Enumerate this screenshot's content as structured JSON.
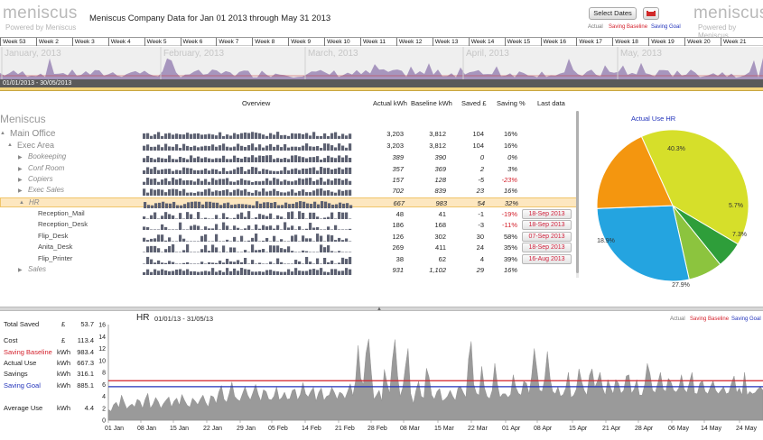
{
  "header": {
    "logo_left": "meniscus",
    "powered_left": "Powered by Meniscus",
    "title": "Meniscus Company Data for Jan 01 2013 through May 31 2013",
    "select_dates": "Select Dates",
    "logo_right": "meniscus",
    "powered_right": "Powered by Meniscus",
    "legend": {
      "actual": "Actual",
      "baseline": "Saving Baseline",
      "goal": "Saving Goal"
    }
  },
  "timeline": {
    "weeks": [
      "Week 53",
      "Week 2",
      "Week 3",
      "Week 4",
      "Week 5",
      "Week 6",
      "Week 7",
      "Week 8",
      "Week 9",
      "Week 10",
      "Week 11",
      "Week 12",
      "Week 13",
      "Week 14",
      "Week 15",
      "Week 16",
      "Week 17",
      "Week 18",
      "Week 19",
      "Week 20",
      "Week 21"
    ],
    "months": [
      "January, 2013",
      "February, 2013",
      "March, 2013",
      "April, 2013",
      "May, 2013"
    ],
    "range": "01/01/2013 - 30/05/2013"
  },
  "table": {
    "headers": {
      "overview": "Overview",
      "actual": "Actual kWh",
      "baseline": "Baseline kWh",
      "saved": "Saved £",
      "saving": "Saving %",
      "last": "Last data"
    },
    "rows": [
      {
        "name": "Meniscus",
        "actual": "",
        "baseline": "",
        "saved": "",
        "saving": "",
        "last": ""
      },
      {
        "name": "Main Office",
        "actual": "3,203",
        "baseline": "3,812",
        "saved": "104",
        "saving": "16%",
        "last": ""
      },
      {
        "name": "Exec Area",
        "actual": "3,203",
        "baseline": "3,812",
        "saved": "104",
        "saving": "16%",
        "last": ""
      },
      {
        "name": "Bookeeping",
        "actual": "389",
        "baseline": "390",
        "saved": "0",
        "saving": "0%",
        "last": ""
      },
      {
        "name": "Conf Room",
        "actual": "357",
        "baseline": "369",
        "saved": "2",
        "saving": "3%",
        "last": ""
      },
      {
        "name": "Copiers",
        "actual": "157",
        "baseline": "128",
        "saved": "-5",
        "saving": "-23%",
        "last": ""
      },
      {
        "name": "Exec Sales",
        "actual": "702",
        "baseline": "839",
        "saved": "23",
        "saving": "16%",
        "last": ""
      },
      {
        "name": "HR",
        "actual": "667",
        "baseline": "983",
        "saved": "54",
        "saving": "32%",
        "last": ""
      },
      {
        "name": "Reception_Mail",
        "actual": "48",
        "baseline": "41",
        "saved": "-1",
        "saving": "-19%",
        "last": "18-Sep 2013"
      },
      {
        "name": "Reception_Desk",
        "actual": "186",
        "baseline": "168",
        "saved": "-3",
        "saving": "-11%",
        "last": "18-Sep 2013"
      },
      {
        "name": "Flip_Desk",
        "actual": "126",
        "baseline": "302",
        "saved": "30",
        "saving": "58%",
        "last": "07-Sep 2013"
      },
      {
        "name": "Anita_Desk",
        "actual": "269",
        "baseline": "411",
        "saved": "24",
        "saving": "35%",
        "last": "18-Sep 2013"
      },
      {
        "name": "Flip_Printer",
        "actual": "38",
        "baseline": "62",
        "saved": "4",
        "saving": "39%",
        "last": "16-Aug 2013"
      },
      {
        "name": "Sales",
        "actual": "931",
        "baseline": "1,102",
        "saved": "29",
        "saving": "16%",
        "last": ""
      }
    ]
  },
  "chart_data": [
    {
      "type": "pie",
      "title": "Actual Use HR",
      "slices": [
        {
          "label": "40.3%",
          "value": 40.3,
          "color": "#d6df2a"
        },
        {
          "label": "5.7%",
          "value": 5.7,
          "color": "#2e9e3a"
        },
        {
          "label": "7.3%",
          "value": 7.3,
          "color": "#8cc43e"
        },
        {
          "label": "27.9%",
          "value": 27.9,
          "color": "#24a4e0"
        },
        {
          "label": "18.9%",
          "value": 18.9,
          "color": "#f4960f"
        }
      ]
    },
    {
      "type": "area",
      "title": "HR",
      "subtitle": "01/01/13 - 31/05/13",
      "ylim": [
        0,
        16
      ],
      "yticks": [
        "0",
        "2",
        "4",
        "6",
        "8",
        "10",
        "12",
        "14",
        "16"
      ],
      "xticks": [
        "01 Jan",
        "08 Jan",
        "15 Jan",
        "22 Jan",
        "29 Jan",
        "05 Feb",
        "14 Feb",
        "21 Feb",
        "28 Feb",
        "08 Mar",
        "15 Mar",
        "22 Mar",
        "01 Apr",
        "08 Apr",
        "15 Apr",
        "21 Apr",
        "28 Apr",
        "06 May",
        "14 May",
        "24 May"
      ],
      "values": [
        1.8,
        1.5,
        2.6,
        3,
        2.1,
        4.2,
        3,
        1.9,
        2.4,
        2.7,
        2.2,
        3.5,
        3.2,
        2,
        3.5,
        4.5,
        2,
        2.7,
        3.8,
        3.1,
        2,
        2.8,
        3.4,
        3.9,
        2.2,
        3.2,
        3.7,
        2.5,
        4.3,
        3.3,
        2.5,
        2.2,
        3.7,
        3.2,
        2.6,
        3.5,
        4.2,
        3,
        2.2,
        4.1,
        3.9,
        2.8,
        4.7,
        5.8,
        3.5,
        3,
        4.5,
        6.4,
        4,
        3.5,
        3.2,
        4.4,
        5.6,
        4.2,
        3.4,
        4.6,
        6,
        4.3,
        3.2,
        5.1,
        4.8,
        3.5,
        3.4,
        4,
        5.6,
        3.4,
        3.8,
        4.7,
        3.5,
        3.6,
        5,
        5.2,
        3.4,
        4.3,
        6.3,
        4.4,
        3.9,
        4.8,
        5.5,
        3.2,
        4.6,
        5.4,
        3.3,
        4,
        4.2,
        5.5,
        4.6,
        3.5,
        4.7,
        4.4,
        3.6,
        4.8,
        6.1,
        4.1,
        6.5,
        12.5,
        7,
        6,
        11.2,
        13.6,
        8,
        3.5,
        4.2,
        5,
        3.2,
        8.5,
        6.2,
        4.5,
        10,
        13.5,
        7.5,
        4,
        5.5,
        9,
        12,
        4.5,
        2.8,
        5,
        6.5,
        4,
        3.7,
        8.7,
        7.2,
        4.2,
        3.5,
        4.8,
        5.3,
        3.2,
        3.5,
        4,
        5,
        4,
        3.3,
        5.4,
        5.6,
        4.6,
        3.8,
        10.3,
        13.2,
        6,
        4.5,
        4.2,
        9,
        5.5,
        4,
        3.6,
        5,
        9.5,
        6,
        3.8,
        4.4,
        4.4,
        3.8,
        4.3,
        7.6,
        5.5,
        4.5,
        4.2,
        6.5,
        6.2,
        4.4,
        7.4,
        12,
        8.5,
        5,
        4.8,
        7,
        11.5,
        7,
        4.8,
        4.4,
        5.6,
        4,
        4.3,
        5.4,
        8,
        3.8,
        4.2,
        5.2,
        8.6,
        6.5,
        5,
        4.2,
        7.5,
        8.6,
        5.5,
        6.5,
        8,
        5.4,
        4.2,
        6.8,
        5.5,
        4.4,
        6.8,
        6.2,
        4.5,
        5,
        7.4,
        7.6,
        4.5,
        5.2,
        6.8,
        4.2,
        4.2,
        6,
        9.5,
        7.8,
        5,
        4.6,
        6.2,
        8,
        5.2,
        4.8,
        7,
        6.4,
        5,
        4.7,
        5.4,
        7.6,
        5.2,
        4.6,
        6.3,
        8,
        4.5,
        4.4,
        6.2,
        6.6,
        4.8,
        4.4,
        5.6,
        6.6,
        5,
        4.4,
        5,
        5.6,
        4.4,
        4.6,
        6.2,
        7.4,
        4.6,
        5.4,
        4.2,
        8,
        4.2,
        4.8,
        4.4,
        4.6,
        5.2,
        5.6,
        5
      ],
      "baseline": 6.6,
      "goal": 5.6,
      "legend": {
        "actual": "Actual",
        "baseline": "Saving Baseline",
        "goal": "Saving Goal"
      }
    }
  ],
  "summary": {
    "total_saved": {
      "label": "Total Saved",
      "unit": "£",
      "value": "53.7"
    },
    "cost": {
      "label": "Cost",
      "unit": "£",
      "value": "113.4"
    },
    "baseline": {
      "label": "Saving Baseline",
      "unit": "kWh",
      "value": "983.4"
    },
    "actual": {
      "label": "Actual Use",
      "unit": "kWh",
      "value": "667.3"
    },
    "savings": {
      "label": "Savings",
      "unit": "kWh",
      "value": "316.1"
    },
    "goal": {
      "label": "Saving Goal",
      "unit": "kWh",
      "value": "885.1"
    },
    "average": {
      "label": "Average Use",
      "unit": "kWh",
      "value": "4.4"
    }
  },
  "colors": {
    "baseline": "#d31f2a",
    "goal": "#2233bb",
    "area": "#9a9a9a",
    "selected_row": "#fde7c0"
  }
}
